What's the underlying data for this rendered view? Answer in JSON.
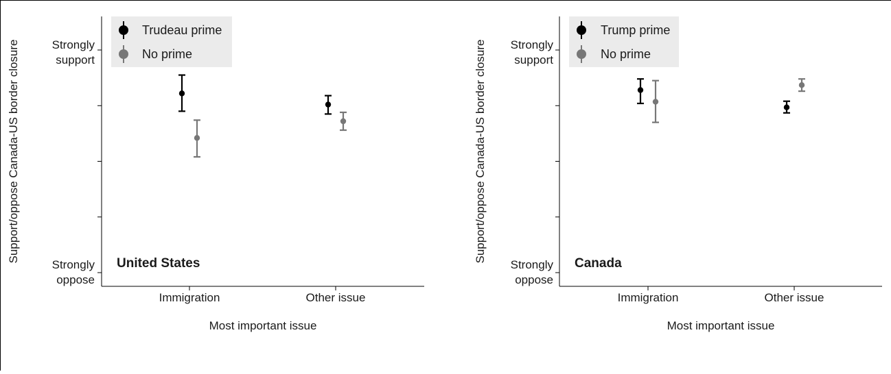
{
  "chart_data": [
    {
      "type": "scatter",
      "panel_label": "United States",
      "xlabel": "Most important issue",
      "ylabel": "Support/oppose Canada-US border closure",
      "categories": [
        "Immigration",
        "Other issue"
      ],
      "y_tick_labels": {
        "top": "Strongly support",
        "bottom": "Strongly oppose"
      },
      "ylim": [
        1,
        5
      ],
      "legend_placement": "top-left",
      "series": [
        {
          "name": "Trudeau prime",
          "color": "#000000",
          "points": [
            {
              "category": "Immigration",
              "y": 4.22,
              "low": 3.9,
              "high": 4.55
            },
            {
              "category": "Other issue",
              "y": 4.02,
              "low": 3.85,
              "high": 4.18
            }
          ]
        },
        {
          "name": "No prime",
          "color": "#777777",
          "points": [
            {
              "category": "Immigration",
              "y": 3.42,
              "low": 3.08,
              "high": 3.74
            },
            {
              "category": "Other issue",
              "y": 3.72,
              "low": 3.56,
              "high": 3.88
            }
          ]
        }
      ]
    },
    {
      "type": "scatter",
      "panel_label": "Canada",
      "xlabel": "Most important issue",
      "ylabel": "Support/oppose Canada-US border closure",
      "categories": [
        "Immigration",
        "Other issue"
      ],
      "y_tick_labels": {
        "top": "Strongly support",
        "bottom": "Strongly oppose"
      },
      "ylim": [
        1,
        5
      ],
      "legend_placement": "top-left",
      "series": [
        {
          "name": "Trump prime",
          "color": "#000000",
          "points": [
            {
              "category": "Immigration",
              "y": 4.28,
              "low": 4.04,
              "high": 4.48
            },
            {
              "category": "Other issue",
              "y": 3.97,
              "low": 3.87,
              "high": 4.08
            }
          ]
        },
        {
          "name": "No prime",
          "color": "#777777",
          "points": [
            {
              "category": "Immigration",
              "y": 4.07,
              "low": 3.7,
              "high": 4.45
            },
            {
              "category": "Other issue",
              "y": 4.37,
              "low": 4.26,
              "high": 4.48
            }
          ]
        }
      ]
    }
  ]
}
